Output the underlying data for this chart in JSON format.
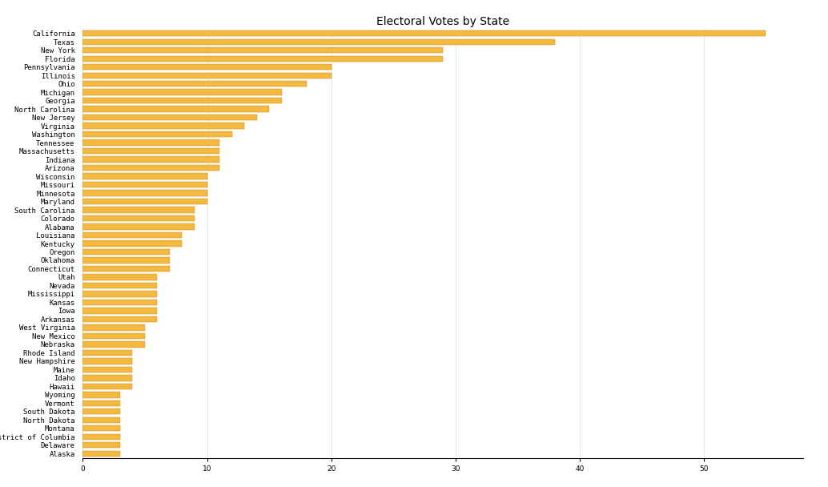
{
  "title": "Electoral Votes by State",
  "states": [
    "California",
    "Texas",
    "New York",
    "Florida",
    "Pennsylvania",
    "Illinois",
    "Ohio",
    "Michigan",
    "Georgia",
    "North Carolina",
    "New Jersey",
    "Virginia",
    "Washington",
    "Tennessee",
    "Massachusetts",
    "Indiana",
    "Arizona",
    "Wisconsin",
    "Missouri",
    "Minnesota",
    "Maryland",
    "South Carolina",
    "Colorado",
    "Alabama",
    "Louisiana",
    "Kentucky",
    "Oregon",
    "Oklahoma",
    "Connecticut",
    "Utah",
    "Nevada",
    "Mississippi",
    "Kansas",
    "Iowa",
    "Arkansas",
    "West Virginia",
    "New Mexico",
    "Nebraska",
    "Rhode Island",
    "New Hampshire",
    "Maine",
    "Idaho",
    "Hawaii",
    "Wyoming",
    "Vermont",
    "South Dakota",
    "North Dakota",
    "Montana",
    "District of Columbia",
    "Delaware",
    "Alaska"
  ],
  "votes": [
    55,
    38,
    29,
    29,
    20,
    20,
    18,
    16,
    16,
    15,
    14,
    13,
    12,
    11,
    11,
    11,
    11,
    10,
    10,
    10,
    10,
    9,
    9,
    9,
    8,
    8,
    7,
    7,
    7,
    6,
    6,
    6,
    6,
    6,
    6,
    5,
    5,
    5,
    4,
    4,
    4,
    4,
    4,
    3,
    3,
    3,
    3,
    3,
    3,
    3,
    3
  ],
  "bar_color": "#F5B942",
  "bar_edge_color": "#B8860B",
  "background_color": "#ffffff",
  "title_fontsize": 10,
  "tick_fontsize": 6.5,
  "xlim": [
    0,
    58
  ]
}
